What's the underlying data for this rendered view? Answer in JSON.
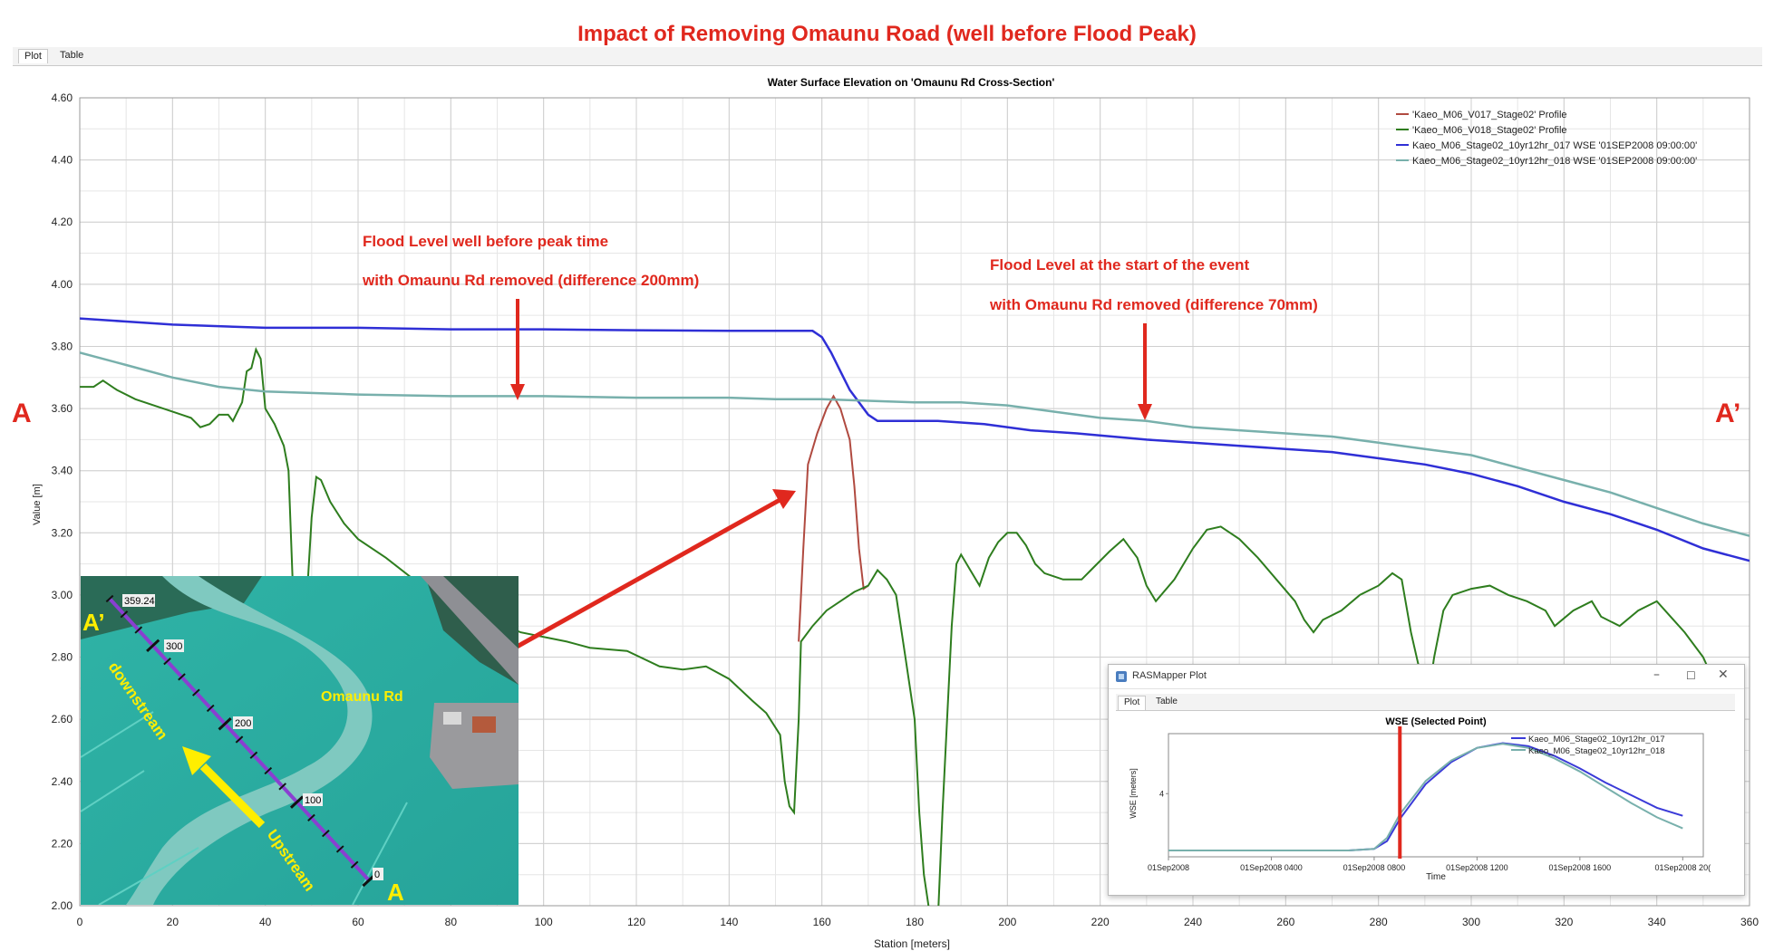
{
  "page": {
    "heading": "Impact of Removing Omaunu Road (well before Flood Peak)",
    "tabs": [
      {
        "label": "Plot"
      },
      {
        "label": "Table"
      }
    ],
    "marker_left": "A",
    "marker_right": "A’"
  },
  "annotations": {
    "left_line1": "Flood Level well before peak time",
    "left_line2": "with  Omaunu  Rd removed (difference 200mm)",
    "right_line1": "Flood Level at the start of the event",
    "right_line2": "with  Omaunu  Rd removed (difference 70mm)"
  },
  "colors": {
    "red": "#e0281e",
    "blue": "#2f2fd6",
    "teal": "#78b0ac",
    "green": "#2e7d1e",
    "brown": "#b04a40",
    "yellow": "#ffee00"
  },
  "chart_data": {
    "type": "line",
    "title": "Water Surface Elevation on 'Omaunu Rd Cross-Section'",
    "xlabel": "Station [meters]",
    "ylabel": "Value [m]",
    "xlim": [
      0,
      360
    ],
    "ylim": [
      2.0,
      4.6
    ],
    "xticks": [
      0,
      20,
      40,
      60,
      80,
      100,
      120,
      140,
      160,
      180,
      200,
      220,
      240,
      260,
      280,
      300,
      320,
      340,
      360
    ],
    "yticks": [
      2.0,
      2.2,
      2.4,
      2.6,
      2.8,
      3.0,
      3.2,
      3.4,
      3.6,
      3.8,
      4.0,
      4.2,
      4.4,
      4.6
    ],
    "grid": true,
    "legend_position": "top-right",
    "series": [
      {
        "name": "'Kaeo_M06_V017_Stage02' Profile",
        "color": "#b04a40",
        "points": [
          [
            155,
            2.85
          ],
          [
            156,
            3.15
          ],
          [
            157,
            3.42
          ],
          [
            159,
            3.52
          ],
          [
            161,
            3.6
          ],
          [
            162.5,
            3.64
          ],
          [
            164,
            3.6
          ],
          [
            166,
            3.5
          ],
          [
            167,
            3.35
          ],
          [
            168,
            3.15
          ],
          [
            169,
            3.02
          ],
          [
            170,
            3.03
          ]
        ]
      },
      {
        "name": "'Kaeo_M06_V018_Stage02' Profile",
        "color": "#2e7d1e",
        "points": [
          [
            0,
            3.67
          ],
          [
            3,
            3.67
          ],
          [
            5,
            3.69
          ],
          [
            8,
            3.66
          ],
          [
            12,
            3.63
          ],
          [
            18,
            3.6
          ],
          [
            22,
            3.58
          ],
          [
            24,
            3.57
          ],
          [
            26,
            3.54
          ],
          [
            28,
            3.55
          ],
          [
            30,
            3.58
          ],
          [
            32,
            3.58
          ],
          [
            33,
            3.56
          ],
          [
            35,
            3.62
          ],
          [
            36,
            3.72
          ],
          [
            37,
            3.73
          ],
          [
            38,
            3.79
          ],
          [
            39,
            3.76
          ],
          [
            40,
            3.6
          ],
          [
            42,
            3.55
          ],
          [
            44,
            3.48
          ],
          [
            45,
            3.4
          ],
          [
            46,
            3.0
          ],
          [
            47,
            2.7
          ],
          [
            48,
            2.8
          ],
          [
            49,
            3.0
          ],
          [
            50,
            3.25
          ],
          [
            51,
            3.38
          ],
          [
            52,
            3.37
          ],
          [
            54,
            3.3
          ],
          [
            57,
            3.23
          ],
          [
            60,
            3.18
          ],
          [
            66,
            3.12
          ],
          [
            72,
            3.05
          ],
          [
            80,
            2.98
          ],
          [
            88,
            2.93
          ],
          [
            95,
            2.88
          ],
          [
            105,
            2.85
          ],
          [
            110,
            2.83
          ],
          [
            118,
            2.82
          ],
          [
            125,
            2.77
          ],
          [
            130,
            2.76
          ],
          [
            135,
            2.77
          ],
          [
            140,
            2.73
          ],
          [
            145,
            2.66
          ],
          [
            148,
            2.62
          ],
          [
            151,
            2.55
          ],
          [
            152,
            2.4
          ],
          [
            153,
            2.32
          ],
          [
            154,
            2.3
          ],
          [
            155,
            2.6
          ],
          [
            155.5,
            2.85
          ],
          [
            158,
            2.9
          ],
          [
            161,
            2.95
          ],
          [
            164,
            2.98
          ],
          [
            167,
            3.01
          ],
          [
            170,
            3.03
          ],
          [
            172,
            3.08
          ],
          [
            174,
            3.05
          ],
          [
            176,
            3.0
          ],
          [
            178,
            2.8
          ],
          [
            180,
            2.6
          ],
          [
            181,
            2.3
          ],
          [
            182,
            2.1
          ],
          [
            183,
            2.0
          ],
          [
            183.5,
            1.95
          ],
          [
            185,
            1.95
          ],
          [
            186,
            2.3
          ],
          [
            187,
            2.6
          ],
          [
            188,
            2.9
          ],
          [
            189,
            3.1
          ],
          [
            190,
            3.13
          ],
          [
            192,
            3.08
          ],
          [
            194,
            3.03
          ],
          [
            196,
            3.12
          ],
          [
            198,
            3.17
          ],
          [
            200,
            3.2
          ],
          [
            202,
            3.2
          ],
          [
            204,
            3.16
          ],
          [
            206,
            3.1
          ],
          [
            208,
            3.07
          ],
          [
            212,
            3.05
          ],
          [
            216,
            3.05
          ],
          [
            218,
            3.08
          ],
          [
            222,
            3.14
          ],
          [
            225,
            3.18
          ],
          [
            228,
            3.12
          ],
          [
            230,
            3.03
          ],
          [
            232,
            2.98
          ],
          [
            236,
            3.05
          ],
          [
            240,
            3.15
          ],
          [
            243,
            3.21
          ],
          [
            246,
            3.22
          ],
          [
            250,
            3.18
          ],
          [
            254,
            3.12
          ],
          [
            258,
            3.05
          ],
          [
            262,
            2.98
          ],
          [
            264,
            2.92
          ],
          [
            266,
            2.88
          ],
          [
            268,
            2.92
          ],
          [
            272,
            2.95
          ],
          [
            276,
            3.0
          ],
          [
            280,
            3.03
          ],
          [
            283,
            3.07
          ],
          [
            285,
            3.05
          ],
          [
            287,
            2.88
          ],
          [
            289,
            2.75
          ],
          [
            290,
            2.65
          ],
          [
            291,
            2.7
          ],
          [
            292,
            2.8
          ],
          [
            294,
            2.95
          ],
          [
            296,
            3.0
          ],
          [
            300,
            3.02
          ],
          [
            304,
            3.03
          ],
          [
            308,
            3.0
          ],
          [
            312,
            2.98
          ],
          [
            316,
            2.95
          ],
          [
            318,
            2.9
          ],
          [
            322,
            2.95
          ],
          [
            326,
            2.98
          ],
          [
            328,
            2.93
          ],
          [
            332,
            2.9
          ],
          [
            336,
            2.95
          ],
          [
            340,
            2.98
          ],
          [
            343,
            2.93
          ],
          [
            346,
            2.88
          ],
          [
            350,
            2.8
          ],
          [
            353,
            2.7
          ],
          [
            355,
            2.6
          ]
        ]
      },
      {
        "name": "Kaeo_M06_Stage02_10yr12hr_017 WSE '01SEP2008 09:00:00'",
        "color": "#2f2fd6",
        "points": [
          [
            0,
            3.89
          ],
          [
            10,
            3.88
          ],
          [
            20,
            3.87
          ],
          [
            40,
            3.86
          ],
          [
            60,
            3.86
          ],
          [
            80,
            3.855
          ],
          [
            100,
            3.855
          ],
          [
            120,
            3.852
          ],
          [
            140,
            3.85
          ],
          [
            150,
            3.85
          ],
          [
            155,
            3.85
          ],
          [
            158,
            3.85
          ],
          [
            160,
            3.83
          ],
          [
            162,
            3.78
          ],
          [
            164,
            3.72
          ],
          [
            166,
            3.66
          ],
          [
            168,
            3.62
          ],
          [
            170,
            3.58
          ],
          [
            172,
            3.56
          ],
          [
            178,
            3.56
          ],
          [
            185,
            3.56
          ],
          [
            195,
            3.55
          ],
          [
            205,
            3.53
          ],
          [
            215,
            3.52
          ],
          [
            230,
            3.5
          ],
          [
            240,
            3.49
          ],
          [
            250,
            3.48
          ],
          [
            260,
            3.47
          ],
          [
            270,
            3.46
          ],
          [
            280,
            3.44
          ],
          [
            290,
            3.42
          ],
          [
            300,
            3.39
          ],
          [
            310,
            3.35
          ],
          [
            320,
            3.3
          ],
          [
            330,
            3.26
          ],
          [
            340,
            3.21
          ],
          [
            350,
            3.15
          ],
          [
            360,
            3.11
          ]
        ]
      },
      {
        "name": "Kaeo_M06_Stage02_10yr12hr_018 WSE '01SEP2008 09:00:00'",
        "color": "#78b0ac",
        "points": [
          [
            0,
            3.78
          ],
          [
            10,
            3.74
          ],
          [
            20,
            3.7
          ],
          [
            30,
            3.67
          ],
          [
            40,
            3.655
          ],
          [
            60,
            3.645
          ],
          [
            80,
            3.64
          ],
          [
            100,
            3.64
          ],
          [
            120,
            3.635
          ],
          [
            140,
            3.635
          ],
          [
            150,
            3.63
          ],
          [
            160,
            3.63
          ],
          [
            170,
            3.625
          ],
          [
            180,
            3.62
          ],
          [
            190,
            3.62
          ],
          [
            200,
            3.61
          ],
          [
            210,
            3.59
          ],
          [
            220,
            3.57
          ],
          [
            230,
            3.56
          ],
          [
            240,
            3.54
          ],
          [
            250,
            3.53
          ],
          [
            260,
            3.52
          ],
          [
            270,
            3.51
          ],
          [
            280,
            3.49
          ],
          [
            290,
            3.47
          ],
          [
            300,
            3.45
          ],
          [
            310,
            3.41
          ],
          [
            320,
            3.37
          ],
          [
            330,
            3.33
          ],
          [
            340,
            3.28
          ],
          [
            350,
            3.23
          ],
          [
            360,
            3.19
          ]
        ]
      }
    ]
  },
  "inset_map": {
    "station_labels": [
      "359.24",
      "300",
      "200",
      "100",
      "0"
    ],
    "road_label": "Omaunu  Rd",
    "arrow_label_down": "downstream",
    "arrow_label_up": "Upstream",
    "point_a": "A",
    "point_a_prime": "A’"
  },
  "inset_window": {
    "title": "RASMapper Plot",
    "tabs": [
      {
        "label": "Plot"
      },
      {
        "label": "Table"
      }
    ],
    "chart_data": {
      "type": "line",
      "title": "WSE (Selected Point)",
      "xlabel": "Time",
      "ylabel": "WSE [meters]",
      "xticks": [
        "01Sep2008",
        "01Sep2008 0400",
        "01Sep2008 0800",
        "01Sep2008 1200",
        "01Sep2008 1600",
        "01Sep2008 20("
      ],
      "yticks": [
        4
      ],
      "marker_time_hours": 9,
      "series": [
        {
          "name": "Kaeo_M06_Stage02_10yr12hr_017",
          "color": "#3a3ad8",
          "points": [
            [
              0,
              2.2
            ],
            [
              7,
              2.2
            ],
            [
              8,
              2.25
            ],
            [
              8.5,
              2.5
            ],
            [
              9,
              3.2
            ],
            [
              10,
              4.3
            ],
            [
              11,
              5.0
            ],
            [
              12,
              5.45
            ],
            [
              13,
              5.6
            ],
            [
              14,
              5.5
            ],
            [
              15,
              5.2
            ],
            [
              16,
              4.8
            ],
            [
              17,
              4.35
            ],
            [
              18,
              3.95
            ],
            [
              19,
              3.55
            ],
            [
              20,
              3.3
            ]
          ]
        },
        {
          "name": "Kaeo_M06_Stage02_10yr12hr_018",
          "color": "#78b0ac",
          "points": [
            [
              0,
              2.2
            ],
            [
              7,
              2.2
            ],
            [
              8,
              2.25
            ],
            [
              8.5,
              2.6
            ],
            [
              9,
              3.35
            ],
            [
              10,
              4.4
            ],
            [
              11,
              5.05
            ],
            [
              12,
              5.45
            ],
            [
              13,
              5.58
            ],
            [
              14,
              5.45
            ],
            [
              15,
              5.12
            ],
            [
              16,
              4.7
            ],
            [
              17,
              4.2
            ],
            [
              18,
              3.7
            ],
            [
              19,
              3.25
            ],
            [
              20,
              2.9
            ]
          ]
        }
      ]
    }
  }
}
